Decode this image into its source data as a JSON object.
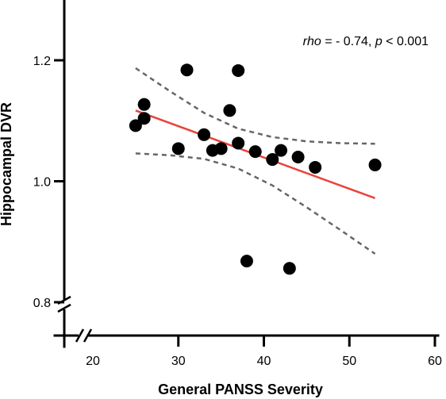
{
  "chart_data": {
    "type": "scatter",
    "xlabel": "General PANSS Severity",
    "ylabel": "Hippocampal DVR",
    "xlim": [
      20,
      60
    ],
    "ylim": [
      0.8,
      1.3
    ],
    "x_ticks": [
      20,
      30,
      40,
      50,
      60
    ],
    "y_ticks": [
      0.8,
      1.0,
      1.2
    ],
    "x_tick_labels": [
      "20",
      "30",
      "40",
      "50",
      "60"
    ],
    "y_tick_labels": [
      "0.8",
      "1.0",
      "1.2"
    ],
    "axis_breaks": true,
    "grid": false,
    "annotation": {
      "rho_symbol": "rho",
      "rho_value": " = - 0.74, ",
      "p_symbol": "p",
      "p_value": " < 0.001"
    },
    "points": [
      {
        "x": 25,
        "y": 1.092
      },
      {
        "x": 26,
        "y": 1.127
      },
      {
        "x": 26,
        "y": 1.104
      },
      {
        "x": 30,
        "y": 1.054
      },
      {
        "x": 31,
        "y": 1.184
      },
      {
        "x": 33,
        "y": 1.077
      },
      {
        "x": 34,
        "y": 1.051
      },
      {
        "x": 35,
        "y": 1.054
      },
      {
        "x": 36,
        "y": 1.117
      },
      {
        "x": 37,
        "y": 1.183
      },
      {
        "x": 37,
        "y": 1.063
      },
      {
        "x": 38,
        "y": 0.868
      },
      {
        "x": 39,
        "y": 1.049
      },
      {
        "x": 41,
        "y": 1.036
      },
      {
        "x": 42,
        "y": 1.051
      },
      {
        "x": 43,
        "y": 0.856
      },
      {
        "x": 44,
        "y": 1.04
      },
      {
        "x": 46,
        "y": 1.023
      },
      {
        "x": 53,
        "y": 1.027
      }
    ],
    "regression_line": {
      "x": [
        25,
        53
      ],
      "y": [
        1.117,
        0.972
      ],
      "color": "#e8443a"
    },
    "confidence_band": {
      "x": [
        25,
        29,
        33,
        37,
        41,
        45,
        49,
        53
      ],
      "upper": [
        1.187,
        1.149,
        1.113,
        1.087,
        1.073,
        1.066,
        1.063,
        1.062
      ],
      "lower": [
        1.046,
        1.043,
        1.037,
        1.021,
        0.993,
        0.957,
        0.919,
        0.88
      ],
      "color": "#666666"
    },
    "point_color": "#000000"
  }
}
